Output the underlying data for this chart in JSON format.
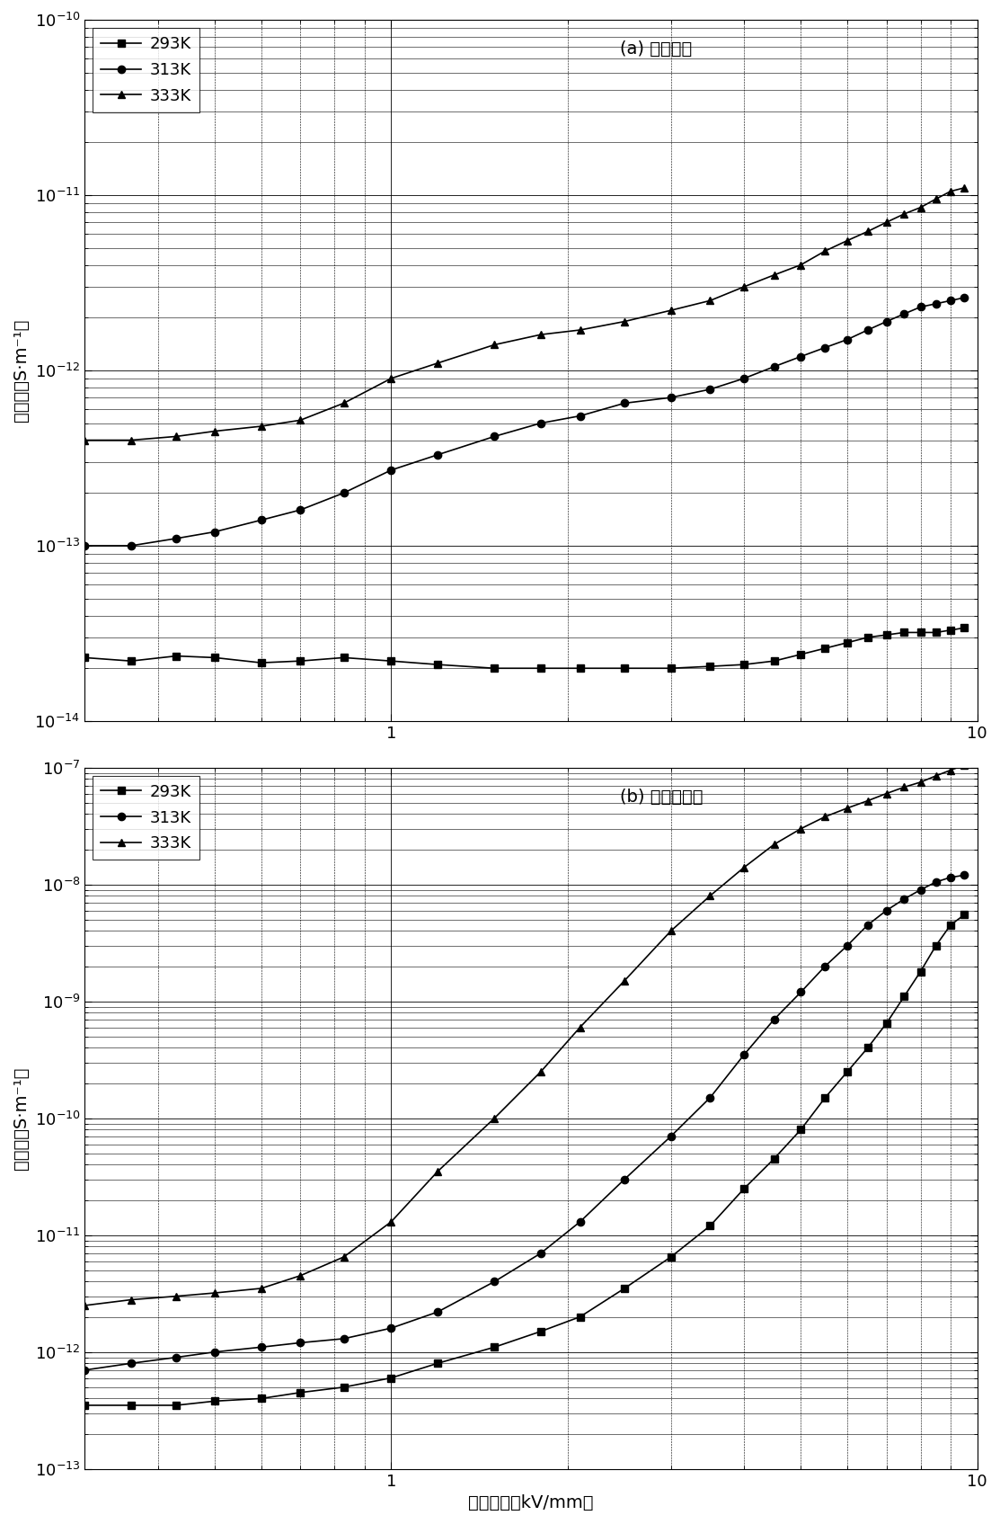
{
  "title_a": "(a) 普通环氧",
  "title_b": "(b) 非线性环氧",
  "ylabel": "电导率（S·m⁻¹）",
  "xlabel": "电场強度（kV/mm）",
  "legend_labels": [
    "293K",
    "313K",
    "333K"
  ],
  "panel_a": {
    "xlim": [
      0.3,
      10.0
    ],
    "ylim": [
      1e-14,
      1e-10
    ],
    "293K_x": [
      0.3,
      0.36,
      0.43,
      0.5,
      0.6,
      0.7,
      0.83,
      1.0,
      1.2,
      1.5,
      1.8,
      2.1,
      2.5,
      3.0,
      3.5,
      4.0,
      4.5,
      5.0,
      5.5,
      6.0,
      6.5,
      7.0,
      7.5,
      8.0,
      8.5,
      9.0,
      9.5
    ],
    "293K_y": [
      2.3e-14,
      2.2e-14,
      2.35e-14,
      2.3e-14,
      2.15e-14,
      2.2e-14,
      2.3e-14,
      2.2e-14,
      2.1e-14,
      2e-14,
      2e-14,
      2e-14,
      2e-14,
      2e-14,
      2.05e-14,
      2.1e-14,
      2.2e-14,
      2.4e-14,
      2.6e-14,
      2.8e-14,
      3e-14,
      3.1e-14,
      3.2e-14,
      3.2e-14,
      3.2e-14,
      3.3e-14,
      3.4e-14
    ],
    "313K_x": [
      0.3,
      0.36,
      0.43,
      0.5,
      0.6,
      0.7,
      0.83,
      1.0,
      1.2,
      1.5,
      1.8,
      2.1,
      2.5,
      3.0,
      3.5,
      4.0,
      4.5,
      5.0,
      5.5,
      6.0,
      6.5,
      7.0,
      7.5,
      8.0,
      8.5,
      9.0,
      9.5
    ],
    "313K_y": [
      1e-13,
      1e-13,
      1.1e-13,
      1.2e-13,
      1.4e-13,
      1.6e-13,
      2e-13,
      2.7e-13,
      3.3e-13,
      4.2e-13,
      5e-13,
      5.5e-13,
      6.5e-13,
      7e-13,
      7.8e-13,
      9e-13,
      1.05e-12,
      1.2e-12,
      1.35e-12,
      1.5e-12,
      1.7e-12,
      1.9e-12,
      2.1e-12,
      2.3e-12,
      2.4e-12,
      2.5e-12,
      2.6e-12
    ],
    "333K_x": [
      0.3,
      0.36,
      0.43,
      0.5,
      0.6,
      0.7,
      0.83,
      1.0,
      1.2,
      1.5,
      1.8,
      2.1,
      2.5,
      3.0,
      3.5,
      4.0,
      4.5,
      5.0,
      5.5,
      6.0,
      6.5,
      7.0,
      7.5,
      8.0,
      8.5,
      9.0,
      9.5
    ],
    "333K_y": [
      4e-13,
      4e-13,
      4.2e-13,
      4.5e-13,
      4.8e-13,
      5.2e-13,
      6.5e-13,
      9e-13,
      1.1e-12,
      1.4e-12,
      1.6e-12,
      1.7e-12,
      1.9e-12,
      2.2e-12,
      2.5e-12,
      3e-12,
      3.5e-12,
      4e-12,
      4.8e-12,
      5.5e-12,
      6.2e-12,
      7e-12,
      7.8e-12,
      8.5e-12,
      9.5e-12,
      1.05e-11,
      1.1e-11
    ]
  },
  "panel_b": {
    "xlim": [
      0.3,
      10.0
    ],
    "ylim": [
      1e-13,
      1e-07
    ],
    "293K_x": [
      0.3,
      0.36,
      0.43,
      0.5,
      0.6,
      0.7,
      0.83,
      1.0,
      1.2,
      1.5,
      1.8,
      2.1,
      2.5,
      3.0,
      3.5,
      4.0,
      4.5,
      5.0,
      5.5,
      6.0,
      6.5,
      7.0,
      7.5,
      8.0,
      8.5,
      9.0,
      9.5
    ],
    "293K_y": [
      3.5e-13,
      3.5e-13,
      3.5e-13,
      3.8e-13,
      4e-13,
      4.5e-13,
      5e-13,
      6e-13,
      8e-13,
      1.1e-12,
      1.5e-12,
      2e-12,
      3.5e-12,
      6.5e-12,
      1.2e-11,
      2.5e-11,
      4.5e-11,
      8e-11,
      1.5e-10,
      2.5e-10,
      4e-10,
      6.5e-10,
      1.1e-09,
      1.8e-09,
      3e-09,
      4.5e-09,
      5.5e-09
    ],
    "313K_x": [
      0.3,
      0.36,
      0.43,
      0.5,
      0.6,
      0.7,
      0.83,
      1.0,
      1.2,
      1.5,
      1.8,
      2.1,
      2.5,
      3.0,
      3.5,
      4.0,
      4.5,
      5.0,
      5.5,
      6.0,
      6.5,
      7.0,
      7.5,
      8.0,
      8.5,
      9.0,
      9.5
    ],
    "313K_y": [
      7e-13,
      8e-13,
      9e-13,
      1e-12,
      1.1e-12,
      1.2e-12,
      1.3e-12,
      1.6e-12,
      2.2e-12,
      4e-12,
      7e-12,
      1.3e-11,
      3e-11,
      7e-11,
      1.5e-10,
      3.5e-10,
      7e-10,
      1.2e-09,
      2e-09,
      3e-09,
      4.5e-09,
      6e-09,
      7.5e-09,
      9e-09,
      1.05e-08,
      1.15e-08,
      1.2e-08
    ],
    "333K_x": [
      0.3,
      0.36,
      0.43,
      0.5,
      0.6,
      0.7,
      0.83,
      1.0,
      1.2,
      1.5,
      1.8,
      2.1,
      2.5,
      3.0,
      3.5,
      4.0,
      4.5,
      5.0,
      5.5,
      6.0,
      6.5,
      7.0,
      7.5,
      8.0,
      8.5,
      9.0,
      9.5
    ],
    "333K_y": [
      2.5e-12,
      2.8e-12,
      3e-12,
      3.2e-12,
      3.5e-12,
      4.5e-12,
      6.5e-12,
      1.3e-11,
      3.5e-11,
      1e-10,
      2.5e-10,
      6e-10,
      1.5e-09,
      4e-09,
      8e-09,
      1.4e-08,
      2.2e-08,
      3e-08,
      3.8e-08,
      4.5e-08,
      5.2e-08,
      6e-08,
      6.8e-08,
      7.5e-08,
      8.5e-08,
      9.5e-08,
      1.05e-07
    ]
  },
  "line_color": "#000000",
  "marker_sq": "s",
  "marker_ci": "o",
  "marker_tr": "^",
  "markersize": 6,
  "linewidth": 1.2,
  "figsize": [
    11.13,
    16.95
  ],
  "dpi": 100
}
